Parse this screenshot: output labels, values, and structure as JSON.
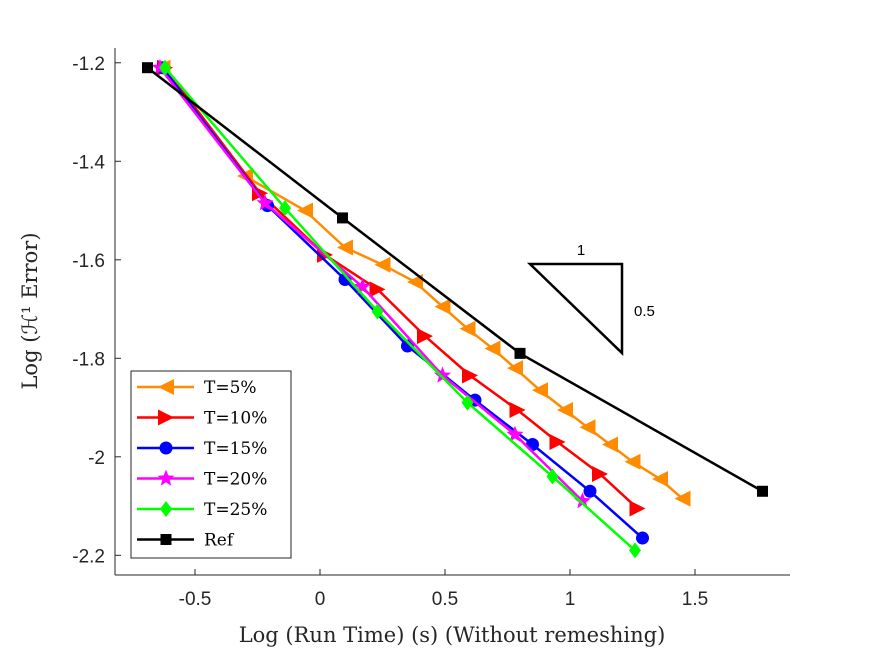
{
  "chart_data": {
    "type": "line",
    "title": "",
    "xlabel": "Log (Run Time) (s) (Without remeshing)",
    "ylabel": "Log (ℋ¹ Error)",
    "xlim": [
      -0.82,
      1.88
    ],
    "ylim": [
      -2.24,
      -1.17
    ],
    "xticks": [
      -0.5,
      0,
      0.5,
      1,
      1.5
    ],
    "xtick_labels": [
      "-0.5",
      "0",
      "0.5",
      "1",
      "1.5"
    ],
    "yticks": [
      -1.2,
      -1.4,
      -1.6,
      -1.8,
      -2.0,
      -2.2
    ],
    "ytick_labels": [
      "-1.2",
      "-1.4",
      "-1.6",
      "-1.8",
      "-2",
      "-2.2"
    ],
    "grid": false,
    "legend_position": "bottom-left",
    "series": [
      {
        "name": "T=5%",
        "color": "#FF8C00",
        "marker": "triangle-left",
        "x": [
          -0.63,
          -0.3,
          -0.06,
          0.1,
          0.25,
          0.38,
          0.49,
          0.59,
          0.69,
          0.78,
          0.88,
          0.98,
          1.07,
          1.16,
          1.25,
          1.36,
          1.45
        ],
        "y": [
          -1.21,
          -1.43,
          -1.5,
          -1.575,
          -1.61,
          -1.645,
          -1.695,
          -1.74,
          -1.78,
          -1.82,
          -1.865,
          -1.905,
          -1.94,
          -1.975,
          -2.01,
          -2.045,
          -2.085
        ]
      },
      {
        "name": "T=10%",
        "color": "#FF0000",
        "marker": "triangle-right",
        "x": [
          -0.62,
          -0.24,
          0.02,
          0.23,
          0.42,
          0.6,
          0.79,
          0.95,
          1.12,
          1.27
        ],
        "y": [
          -1.21,
          -1.465,
          -1.59,
          -1.66,
          -1.755,
          -1.835,
          -1.905,
          -1.97,
          -2.035,
          -2.105
        ]
      },
      {
        "name": "T=15%",
        "color": "#0000FF",
        "marker": "circle",
        "x": [
          -0.63,
          -0.21,
          0.1,
          0.35,
          0.62,
          0.85,
          1.08,
          1.29
        ],
        "y": [
          -1.21,
          -1.49,
          -1.64,
          -1.775,
          -1.885,
          -1.975,
          -2.07,
          -2.165
        ]
      },
      {
        "name": "T=20%",
        "color": "#FF00FF",
        "marker": "star",
        "x": [
          -0.64,
          -0.22,
          0.17,
          0.49,
          0.78,
          1.05
        ],
        "y": [
          -1.21,
          -1.485,
          -1.655,
          -1.835,
          -1.955,
          -2.09
        ]
      },
      {
        "name": "T=25%",
        "color": "#00FF00",
        "marker": "diamond",
        "x": [
          -0.62,
          -0.14,
          0.23,
          0.59,
          0.93,
          1.26
        ],
        "y": [
          -1.21,
          -1.495,
          -1.705,
          -1.89,
          -2.04,
          -2.19
        ]
      },
      {
        "name": "Ref",
        "color": "#000000",
        "marker": "square",
        "x": [
          -0.69,
          0.09,
          0.8,
          1.77
        ],
        "y": [
          -1.21,
          -1.515,
          -1.79,
          -2.07
        ]
      }
    ],
    "annotations": [
      {
        "text": "1",
        "role": "slope-triangle-horizontal"
      },
      {
        "text": "0.5",
        "role": "slope-triangle-vertical"
      }
    ]
  }
}
